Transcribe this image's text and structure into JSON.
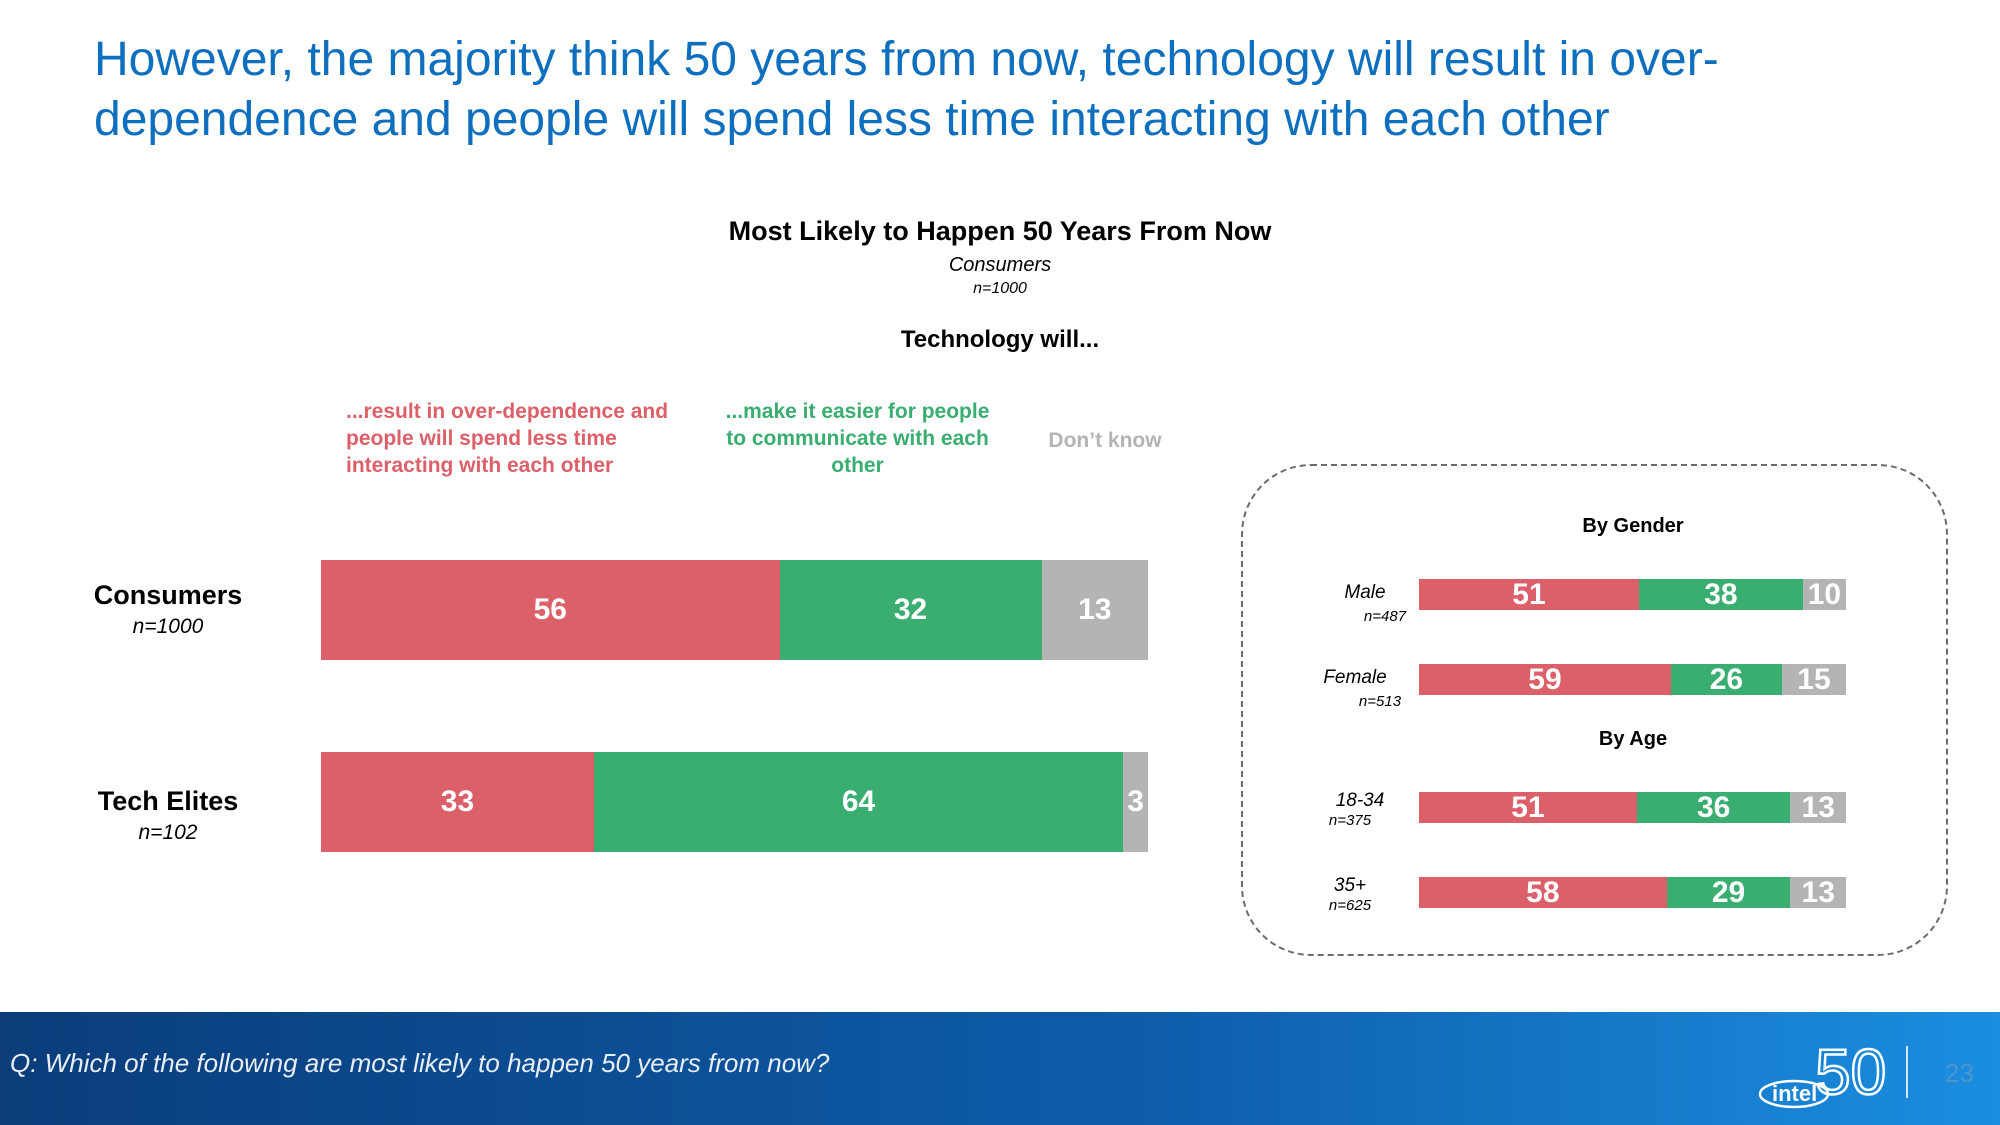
{
  "title": "However, the majority think 50 years from now, technology will result in over-dependence and people will spend less time interacting with each other",
  "chart_data": [
    {
      "type": "bar",
      "orientation": "horizontal-stacked",
      "title": "Most Likely to Happen 50 Years From Now",
      "subtitle": "Consumers",
      "subtitle_n": "n=1000",
      "question_label": "Technology will...",
      "legend": [
        "...result in over-dependence and people will spend less time interacting with each other",
        "...make it easier for people to communicate with each other",
        "Don’t know"
      ],
      "categories": [
        {
          "name": "Consumers",
          "n": "n=1000"
        },
        {
          "name": "Tech Elites",
          "n": "n=102"
        }
      ],
      "series": [
        {
          "name": "over-dependence",
          "color": "#dc6069",
          "values": [
            56,
            33
          ]
        },
        {
          "name": "easier to communicate",
          "color": "#3aad70",
          "values": [
            32,
            64
          ]
        },
        {
          "name": "don't know",
          "color": "#b4b4b4",
          "values": [
            13,
            3
          ]
        }
      ]
    },
    {
      "type": "bar",
      "orientation": "horizontal-stacked",
      "groups": [
        {
          "title": "By Gender",
          "rows": [
            {
              "name": "Male",
              "n": "n=487",
              "values": [
                51,
                38,
                10
              ]
            },
            {
              "name": "Female",
              "n": "n=513",
              "values": [
                59,
                26,
                15
              ]
            }
          ]
        },
        {
          "title": "By Age",
          "rows": [
            {
              "name": "18-34",
              "n": "n=375",
              "values": [
                51,
                36,
                13
              ]
            },
            {
              "name": "35+",
              "n": "n=625",
              "values": [
                58,
                29,
                13
              ]
            }
          ]
        }
      ]
    }
  ],
  "footer": {
    "question": "Q: Which of the following are most likely to happen 50 years from now?",
    "logo_text": "intel",
    "logo_number": "50",
    "page_number": "23"
  }
}
